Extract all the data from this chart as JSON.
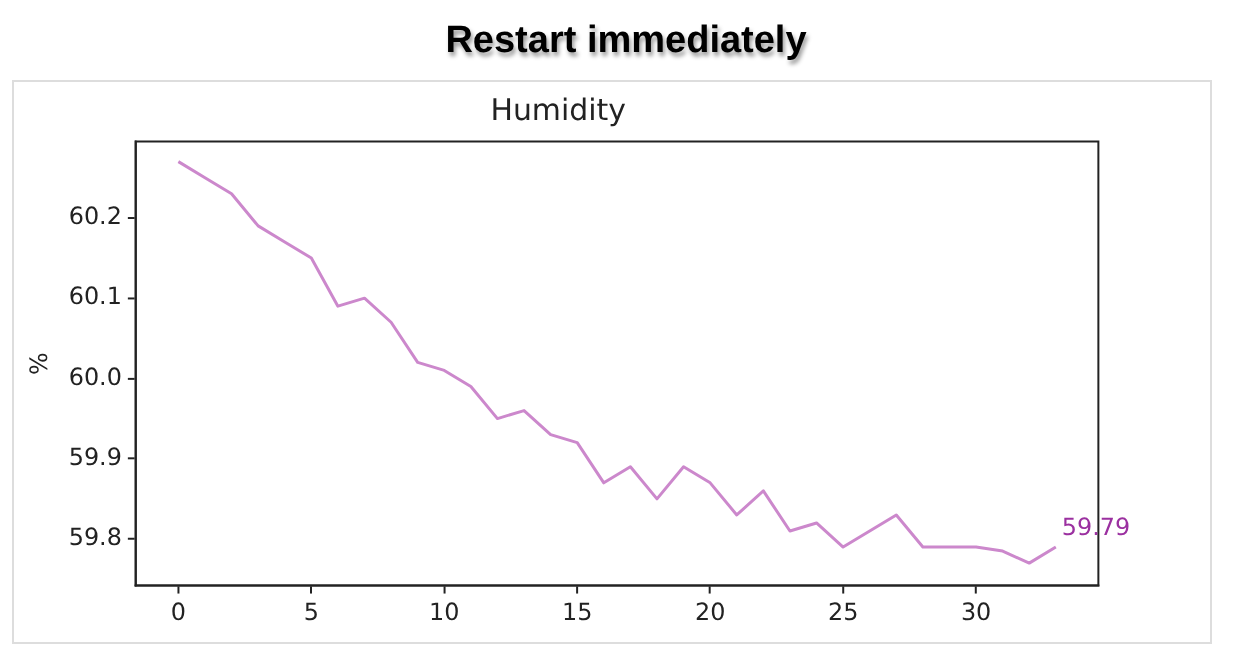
{
  "chart_data": {
    "type": "line",
    "title": "Restart immediately",
    "subtitle": "Humidity",
    "ylabel": "%",
    "x": [
      0,
      1,
      2,
      3,
      4,
      5,
      6,
      7,
      8,
      9,
      10,
      11,
      12,
      13,
      14,
      15,
      16,
      17,
      18,
      19,
      20,
      21,
      22,
      23,
      24,
      25,
      26,
      27,
      28,
      29,
      30,
      31,
      32,
      33
    ],
    "series": [
      {
        "color": "#cc88cc",
        "values": [
          60.27,
          60.25,
          60.23,
          60.19,
          60.17,
          60.15,
          60.09,
          60.1,
          60.07,
          60.02,
          60.01,
          59.99,
          59.95,
          59.96,
          59.93,
          59.92,
          59.87,
          59.89,
          59.85,
          59.89,
          59.87,
          59.83,
          59.86,
          59.81,
          59.82,
          59.79,
          59.81,
          59.83,
          59.79,
          59.79,
          59.79,
          59.785,
          59.77,
          59.79
        ]
      }
    ],
    "xlim": [
      -1.6,
      34.6
    ],
    "xticks": [
      0,
      5,
      10,
      15,
      20,
      25,
      30
    ],
    "ylim": [
      59.742,
      60.295
    ],
    "yticks": [
      {
        "value": 59.8,
        "label": "59.8"
      },
      {
        "value": 59.9,
        "label": "59.9"
      },
      {
        "value": 60.0,
        "label": "60.0"
      },
      {
        "value": 60.1,
        "label": "60.1"
      },
      {
        "value": 60.2,
        "label": "60.2"
      }
    ],
    "annotations": [
      {
        "text": "59.79",
        "x": 33,
        "y": 59.79
      }
    ],
    "legend": false,
    "marker": "none",
    "line_style": "solid"
  }
}
